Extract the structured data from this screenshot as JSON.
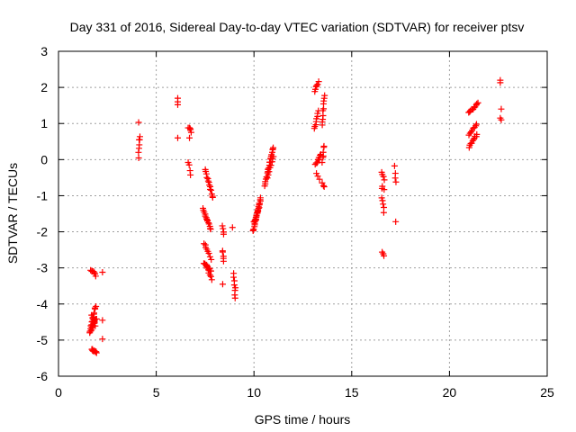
{
  "chart_data": {
    "type": "scatter",
    "title": "Day 331 of 2016, Sidereal Day-to-day VTEC variation (SDTVAR) for receiver ptsv",
    "xlabel": "GPS time / hours",
    "ylabel": "SDTVAR / TECUs",
    "xlim": [
      0,
      25
    ],
    "ylim": [
      -6,
      3
    ],
    "xticks": [
      0,
      5,
      10,
      15,
      20,
      25
    ],
    "yticks": [
      -6,
      -5,
      -4,
      -3,
      -2,
      -1,
      0,
      1,
      2,
      3
    ],
    "xtick_labels": [
      "0",
      "5",
      "10",
      "15",
      "20",
      "25"
    ],
    "ytick_labels": [
      "-6",
      "-5",
      "-4",
      "-3",
      "-2",
      "-1",
      "0",
      "1",
      "2",
      "3"
    ],
    "grid": true,
    "marker": "+",
    "colors": {
      "points": "#ff0000",
      "grid": "#a0a0a0",
      "axis": "#000000"
    },
    "series": [
      {
        "name": "SDTVAR",
        "segments": [
          {
            "x0": 1.6,
            "x1": 1.9,
            "y0": -4.8,
            "y1": -4.05,
            "n": 14
          },
          {
            "x0": 1.65,
            "x1": 1.95,
            "y0": -4.75,
            "y1": -4.4,
            "n": 10
          },
          {
            "x0": 1.7,
            "x1": 1.95,
            "y0": -5.25,
            "y1": -5.35,
            "n": 10
          },
          {
            "x0": 1.65,
            "x1": 1.9,
            "y0": -3.05,
            "y1": -3.2,
            "n": 7
          },
          {
            "x0": 1.7,
            "x1": 1.9,
            "y0": -4.3,
            "y1": -4.6,
            "n": 5
          },
          {
            "x0": 4.1,
            "x1": 4.15,
            "y0": 0.05,
            "y1": 0.65,
            "n": 6
          },
          {
            "x0": 6.65,
            "x1": 6.8,
            "y0": 0.9,
            "y1": 0.78,
            "n": 5
          },
          {
            "x0": 6.65,
            "x1": 6.75,
            "y0": -0.05,
            "y1": -0.4,
            "n": 4
          },
          {
            "x0": 7.4,
            "x1": 7.8,
            "y0": -1.35,
            "y1": -1.95,
            "n": 14
          },
          {
            "x0": 7.45,
            "x1": 7.8,
            "y0": -2.85,
            "y1": -3.1,
            "n": 12
          },
          {
            "x0": 7.5,
            "x1": 7.9,
            "y0": -0.3,
            "y1": -1.05,
            "n": 14
          },
          {
            "x0": 7.45,
            "x1": 7.8,
            "y0": -2.3,
            "y1": -2.75,
            "n": 8
          },
          {
            "x0": 7.6,
            "x1": 7.85,
            "y0": -3.0,
            "y1": -3.3,
            "n": 6
          },
          {
            "x0": 8.4,
            "x1": 8.45,
            "y0": -1.85,
            "y1": -2.05,
            "n": 4
          },
          {
            "x0": 8.4,
            "x1": 8.45,
            "y0": -2.5,
            "y1": -2.8,
            "n": 5
          },
          {
            "x0": 8.95,
            "x1": 9.05,
            "y0": -3.15,
            "y1": -3.85,
            "n": 7
          },
          {
            "x0": 9.95,
            "x1": 10.35,
            "y0": -2.0,
            "y1": -1.05,
            "n": 22
          },
          {
            "x0": 10.0,
            "x1": 10.3,
            "y0": -1.75,
            "y1": -1.25,
            "n": 10
          },
          {
            "x0": 10.55,
            "x1": 11.0,
            "y0": -0.7,
            "y1": 0.35,
            "n": 22
          },
          {
            "x0": 10.7,
            "x1": 11.0,
            "y0": -0.5,
            "y1": 0.1,
            "n": 8
          },
          {
            "x0": 13.1,
            "x1": 13.3,
            "y0": 1.9,
            "y1": 2.15,
            "n": 6
          },
          {
            "x0": 13.1,
            "x1": 13.3,
            "y0": 0.85,
            "y1": 1.35,
            "n": 8
          },
          {
            "x0": 13.15,
            "x1": 13.4,
            "y0": -0.15,
            "y1": 0.15,
            "n": 8
          },
          {
            "x0": 13.2,
            "x1": 13.35,
            "y0": -0.4,
            "y1": -0.55,
            "n": 3
          },
          {
            "x0": 13.5,
            "x1": 13.6,
            "y0": 0.95,
            "y1": 1.8,
            "n": 10
          },
          {
            "x0": 13.5,
            "x1": 13.6,
            "y0": -0.05,
            "y1": 0.4,
            "n": 6
          },
          {
            "x0": 13.5,
            "x1": 13.6,
            "y0": -0.65,
            "y1": -0.75,
            "n": 3
          },
          {
            "x0": 16.55,
            "x1": 16.65,
            "y0": -0.35,
            "y1": -0.55,
            "n": 4
          },
          {
            "x0": 16.55,
            "x1": 16.65,
            "y0": -0.75,
            "y1": -0.8,
            "n": 2
          },
          {
            "x0": 16.55,
            "x1": 16.65,
            "y0": -1.05,
            "y1": -1.45,
            "n": 5
          },
          {
            "x0": 16.55,
            "x1": 16.65,
            "y0": -2.55,
            "y1": -2.65,
            "n": 3
          },
          {
            "x0": 17.2,
            "x1": 17.25,
            "y0": -0.2,
            "y1": -0.65,
            "n": 4
          },
          {
            "x0": 21.0,
            "x1": 21.4,
            "y0": 0.35,
            "y1": 0.7,
            "n": 10
          },
          {
            "x0": 21.0,
            "x1": 21.4,
            "y0": 0.7,
            "y1": 1.0,
            "n": 8
          },
          {
            "x0": 21.0,
            "x1": 21.45,
            "y0": 1.3,
            "y1": 1.55,
            "n": 12
          }
        ],
        "points": [
          [
            2.25,
            -3.12
          ],
          [
            2.25,
            -4.45
          ],
          [
            2.25,
            -4.97
          ],
          [
            4.1,
            1.03
          ],
          [
            4.15,
            0.55
          ],
          [
            6.1,
            1.7
          ],
          [
            6.1,
            1.6
          ],
          [
            6.1,
            1.52
          ],
          [
            6.1,
            0.6
          ],
          [
            6.7,
            0.6
          ],
          [
            8.4,
            -3.45
          ],
          [
            8.9,
            -1.88
          ],
          [
            9.05,
            -3.55
          ],
          [
            13.35,
            0.0
          ],
          [
            16.55,
            -0.8
          ],
          [
            17.25,
            -1.72
          ],
          [
            22.6,
            2.2
          ],
          [
            22.6,
            2.13
          ],
          [
            22.65,
            1.4
          ],
          [
            22.6,
            1.15
          ],
          [
            22.65,
            1.1
          ]
        ]
      }
    ]
  }
}
